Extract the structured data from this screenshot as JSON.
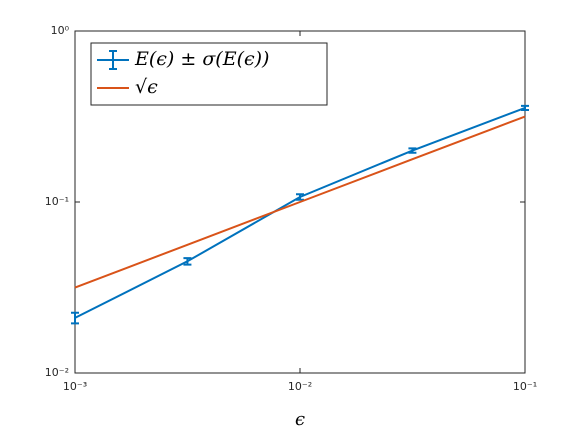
{
  "chart_data": {
    "type": "line",
    "x_label": "ϵ",
    "xscale": "log",
    "yscale": "log",
    "x": [
      0.001,
      0.00316,
      0.01,
      0.0316,
      0.1
    ],
    "series": [
      {
        "name": "E(ϵ) ± σ(E(ϵ))",
        "color": "#0072bd",
        "values": [
          0.021,
          0.045,
          0.107,
          0.2,
          0.355
        ],
        "errors": [
          0.0015,
          0.002,
          0.004,
          0.006,
          0.01
        ]
      },
      {
        "name": "√ϵ",
        "color": "#d95319",
        "values": [
          0.0316,
          0.0562,
          0.1,
          0.178,
          0.316
        ]
      }
    ],
    "xlim": [
      0.001,
      0.1
    ],
    "ylim": [
      0.01,
      1
    ],
    "xticks": [
      {
        "value": 0.001,
        "label": "10⁻³"
      },
      {
        "value": 0.01,
        "label": "10⁻²"
      },
      {
        "value": 0.1,
        "label": "10⁻¹"
      }
    ],
    "yticks": [
      {
        "value": 0.01,
        "label": "10⁻²"
      },
      {
        "value": 0.1,
        "label": "10⁻¹"
      },
      {
        "value": 1,
        "label": "10⁰"
      }
    ],
    "legend": "northwest"
  }
}
